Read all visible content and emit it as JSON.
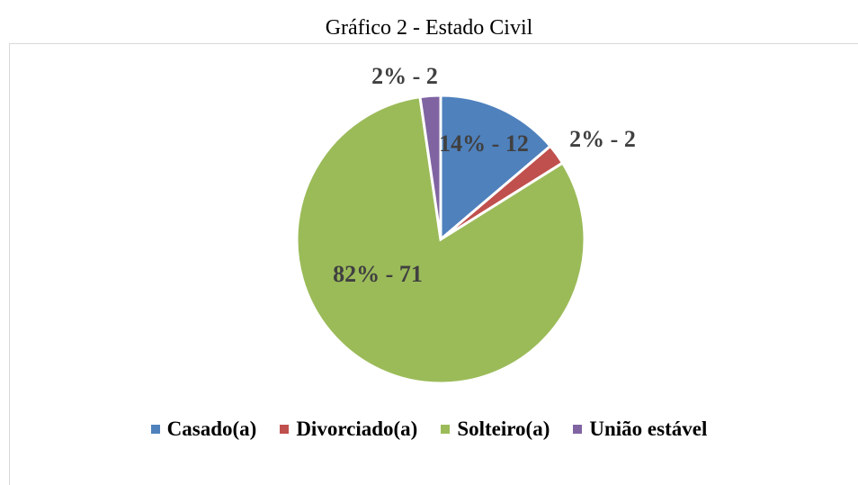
{
  "chart_data": {
    "type": "pie",
    "title": "Gráfico 2 - Estado Civil",
    "categories": [
      "Casado(a)",
      "Divorciado(a)",
      "Solteiro(a)",
      "União estável"
    ],
    "values": [
      12,
      2,
      71,
      2
    ],
    "value_labels": [
      "14% - 12",
      "2% - 2",
      "82% - 71",
      "2% - 2"
    ],
    "colors": [
      "#4f81bd",
      "#c0504d",
      "#9bbb59",
      "#8064a2"
    ],
    "legend": "bottom"
  }
}
